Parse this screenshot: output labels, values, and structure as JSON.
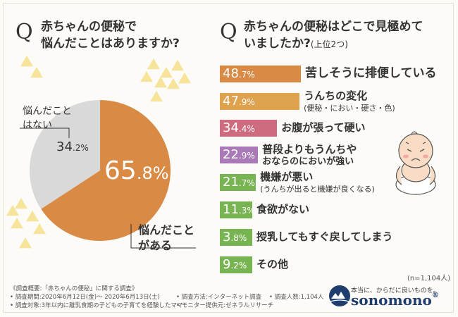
{
  "left_question": {
    "q": "Q",
    "line1": "赤ちゃんの便秘で",
    "line2": "悩んだことはありますか?"
  },
  "right_question": {
    "q": "Q",
    "line1": "赤ちゃんの便秘はどこで見極めて",
    "line2": "いましたか?",
    "note": "(上位2つ)"
  },
  "colors": {
    "orange": "#d98a45",
    "gray": "#d9d9d9",
    "pink": "#cf6b7f",
    "purple": "#a97ab7",
    "green": "#78b451",
    "light_orange": "#dfa24e",
    "triangle": "#f6e49a"
  },
  "chart_data": [
    {
      "type": "pie",
      "slices": [
        {
          "label_line1": "悩んだこと",
          "label_line2": "がある",
          "int": "65",
          "dec": ".8%",
          "value": 65.8
        },
        {
          "label_line1": "悩んだこと",
          "label_line2": "はない",
          "int": "34",
          "dec": ".2%",
          "value": 34.2
        }
      ]
    },
    {
      "type": "bar",
      "xlim": [
        0,
        100
      ],
      "bars": [
        {
          "int": "48",
          "dec": ".7%",
          "value": 48.7,
          "label": "苦しそうに排便している",
          "sub": "",
          "color": "#d98a45"
        },
        {
          "int": "47",
          "dec": ".9%",
          "value": 47.9,
          "label": "うんちの変化",
          "sub": "(便秘・におい・硬さ・色)",
          "color": "#dfa24e"
        },
        {
          "int": "34",
          "dec": ".4%",
          "value": 34.4,
          "label": "お腹が張って硬い",
          "sub": "",
          "color": "#cf6b7f"
        },
        {
          "int": "22",
          "dec": ".9%",
          "value": 22.9,
          "label": "普段よりもうんちや",
          "sub": "おならのにおいが強い",
          "color": "#a97ab7"
        },
        {
          "int": "21",
          "dec": ".7%",
          "value": 21.7,
          "label": "機嫌が悪い",
          "sub": "(うんちが出ると機嫌が良くなる)",
          "color": "#78b451"
        },
        {
          "int": "11",
          "dec": ".3%",
          "value": 11.3,
          "label": "食欲がない",
          "sub": "",
          "color": "#78b451"
        },
        {
          "int": "3",
          "dec": ".8%",
          "value": 3.8,
          "label": "授乳してもすぐ戻してしまう",
          "sub": "",
          "color": "#78b451"
        },
        {
          "int": "9",
          "dec": ".2%",
          "value": 9.2,
          "label": "その他",
          "sub": "",
          "color": "#78b451"
        }
      ]
    }
  ],
  "sample": "(n=1,104人)",
  "footer": {
    "title": "《調査概要:「赤ちゃんの便秘」に関する調査》",
    "period": "• 調査期間:2020年6月12日(金)〜 2020年6月13日(土)",
    "method": "• 調査方法:インターネット調査",
    "count": "• 調査人数:1,104人",
    "target": "• 調査対象:3年以内に離乳食期の子どもの子育てを経験したママ",
    "provider": "• モニター提供元:ゼネラルリサーチ"
  },
  "logo": {
    "tagline": "本当に、からだに良いものを。",
    "name": "sonomono",
    "mark": "®"
  }
}
